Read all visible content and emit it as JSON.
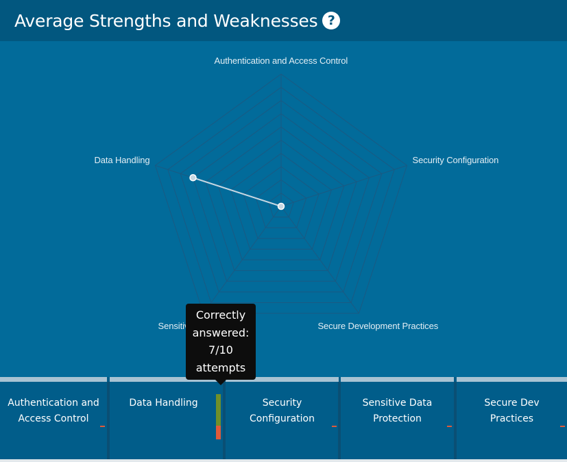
{
  "header": {
    "title": "Average Strengths and Weaknesses",
    "help_icon": "question-circle-icon"
  },
  "chart_data": {
    "type": "radar",
    "axes": [
      "Authentication and Access Control",
      "Security Configuration",
      "Secure Development Practices",
      "Sensitive Data Protection",
      "Data Handling"
    ],
    "axis_label_text": [
      "Authentication and Access Control",
      "Security Configuration",
      "Secure Development Practices",
      "Sensitive Data Protectio",
      "Data Handling"
    ],
    "values": [
      0,
      0,
      0,
      0,
      0.7
    ],
    "range": [
      0,
      1
    ],
    "levels": 10,
    "grid": true,
    "line_color": "#c7d7e2",
    "point_color": "#c7d7e2"
  },
  "tooltip": {
    "lines": [
      "Correctly",
      "answered:",
      "7/10",
      "attempts"
    ]
  },
  "cards": [
    {
      "label": "Authentication and Access Control",
      "correct": 0,
      "total": 0
    },
    {
      "label": "Data Handling",
      "correct": 7,
      "total": 10
    },
    {
      "label": "Security Configuration",
      "correct": 0,
      "total": 0
    },
    {
      "label": "Sensitive Data Protection",
      "correct": 0,
      "total": 0
    },
    {
      "label": "Secure Dev Practices",
      "correct": 0,
      "total": 0
    }
  ],
  "colors": {
    "correct": "#6f8f2a",
    "incorrect": "#e05a3a",
    "card_top_border": "#a8c3d3",
    "chart_bg": "#026b9a",
    "header_bg": "#02577f",
    "grid_line": "#1a5a83"
  }
}
